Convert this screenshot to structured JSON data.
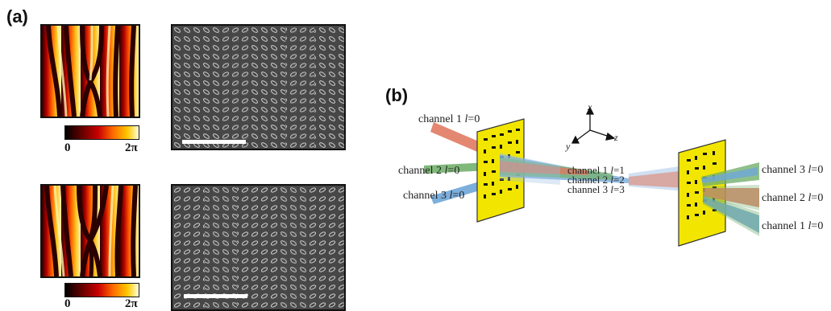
{
  "panels": {
    "a": {
      "label": "(a)"
    },
    "b": {
      "label": "(b)"
    }
  },
  "colorbar": {
    "min_label": "0",
    "max_label": "2π"
  },
  "diagram": {
    "left_inputs": [
      {
        "text": "channel 1 l=0",
        "channel": "channel 1 ",
        "l": "l",
        "value": "=0",
        "color": "#e07a62"
      },
      {
        "text": "channel 2 l=0",
        "channel": "channel 2 ",
        "l": "l",
        "value": "=0",
        "color": "#73b06d"
      },
      {
        "text": "channel 3 l=0",
        "channel": "channel 3 ",
        "l": "l",
        "value": "=0",
        "color": "#6ea6d8"
      }
    ],
    "middle_labels": [
      {
        "text": "channel 1 l=1",
        "channel": "channel 1 ",
        "l": "l",
        "value": "=1"
      },
      {
        "text": "channel 2 l=2",
        "channel": "channel 2 ",
        "l": "l",
        "value": "=2"
      },
      {
        "text": "channel 3 l=3",
        "channel": "channel 3 ",
        "l": "l",
        "value": "=3"
      }
    ],
    "right_outputs": [
      {
        "text": "channel 3 l=0",
        "channel": "channel 3 ",
        "l": "l",
        "value": "=0"
      },
      {
        "text": "channel 2 l=0",
        "channel": "channel 2 ",
        "l": "l",
        "value": "=0"
      },
      {
        "text": "channel 1 l=0",
        "channel": "channel 1 ",
        "l": "l",
        "value": "=0"
      }
    ],
    "axes": {
      "x": "x",
      "y": "y",
      "z": "z"
    }
  },
  "colors": {
    "metasurface": "#f2e600",
    "phase_dark": "#3a0000",
    "phase_bright": "#ffd23a"
  }
}
